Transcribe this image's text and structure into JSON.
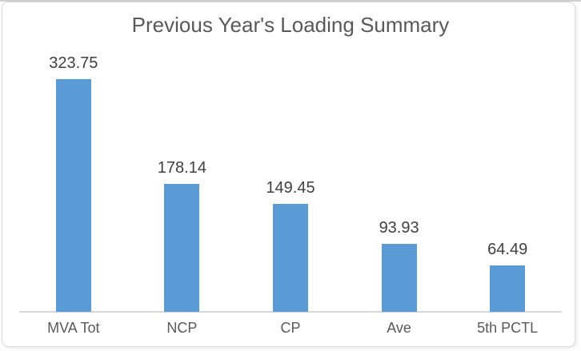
{
  "colors": {
    "accent": "#5b9bd5",
    "title_text": "#595959",
    "label_text": "#404040",
    "category_text": "#595959",
    "axis_line": "#d9d9d9",
    "frame_border": "#d9d9d9",
    "top_edge": "#d0d0d0"
  },
  "chart_data": {
    "type": "bar",
    "title": "Previous Year's Loading Summary",
    "categories": [
      "MVA Tot",
      "NCP",
      "CP",
      "Ave",
      "5th PCTL"
    ],
    "values": [
      323.75,
      178.14,
      149.45,
      93.93,
      64.49
    ],
    "data_labels": [
      "323.75",
      "178.14",
      "149.45",
      "93.93",
      "64.49"
    ],
    "xlabel": "",
    "ylabel": "",
    "ylim": [
      0,
      350
    ],
    "grid": false,
    "legend": false,
    "data_label_position": "outside-end"
  }
}
